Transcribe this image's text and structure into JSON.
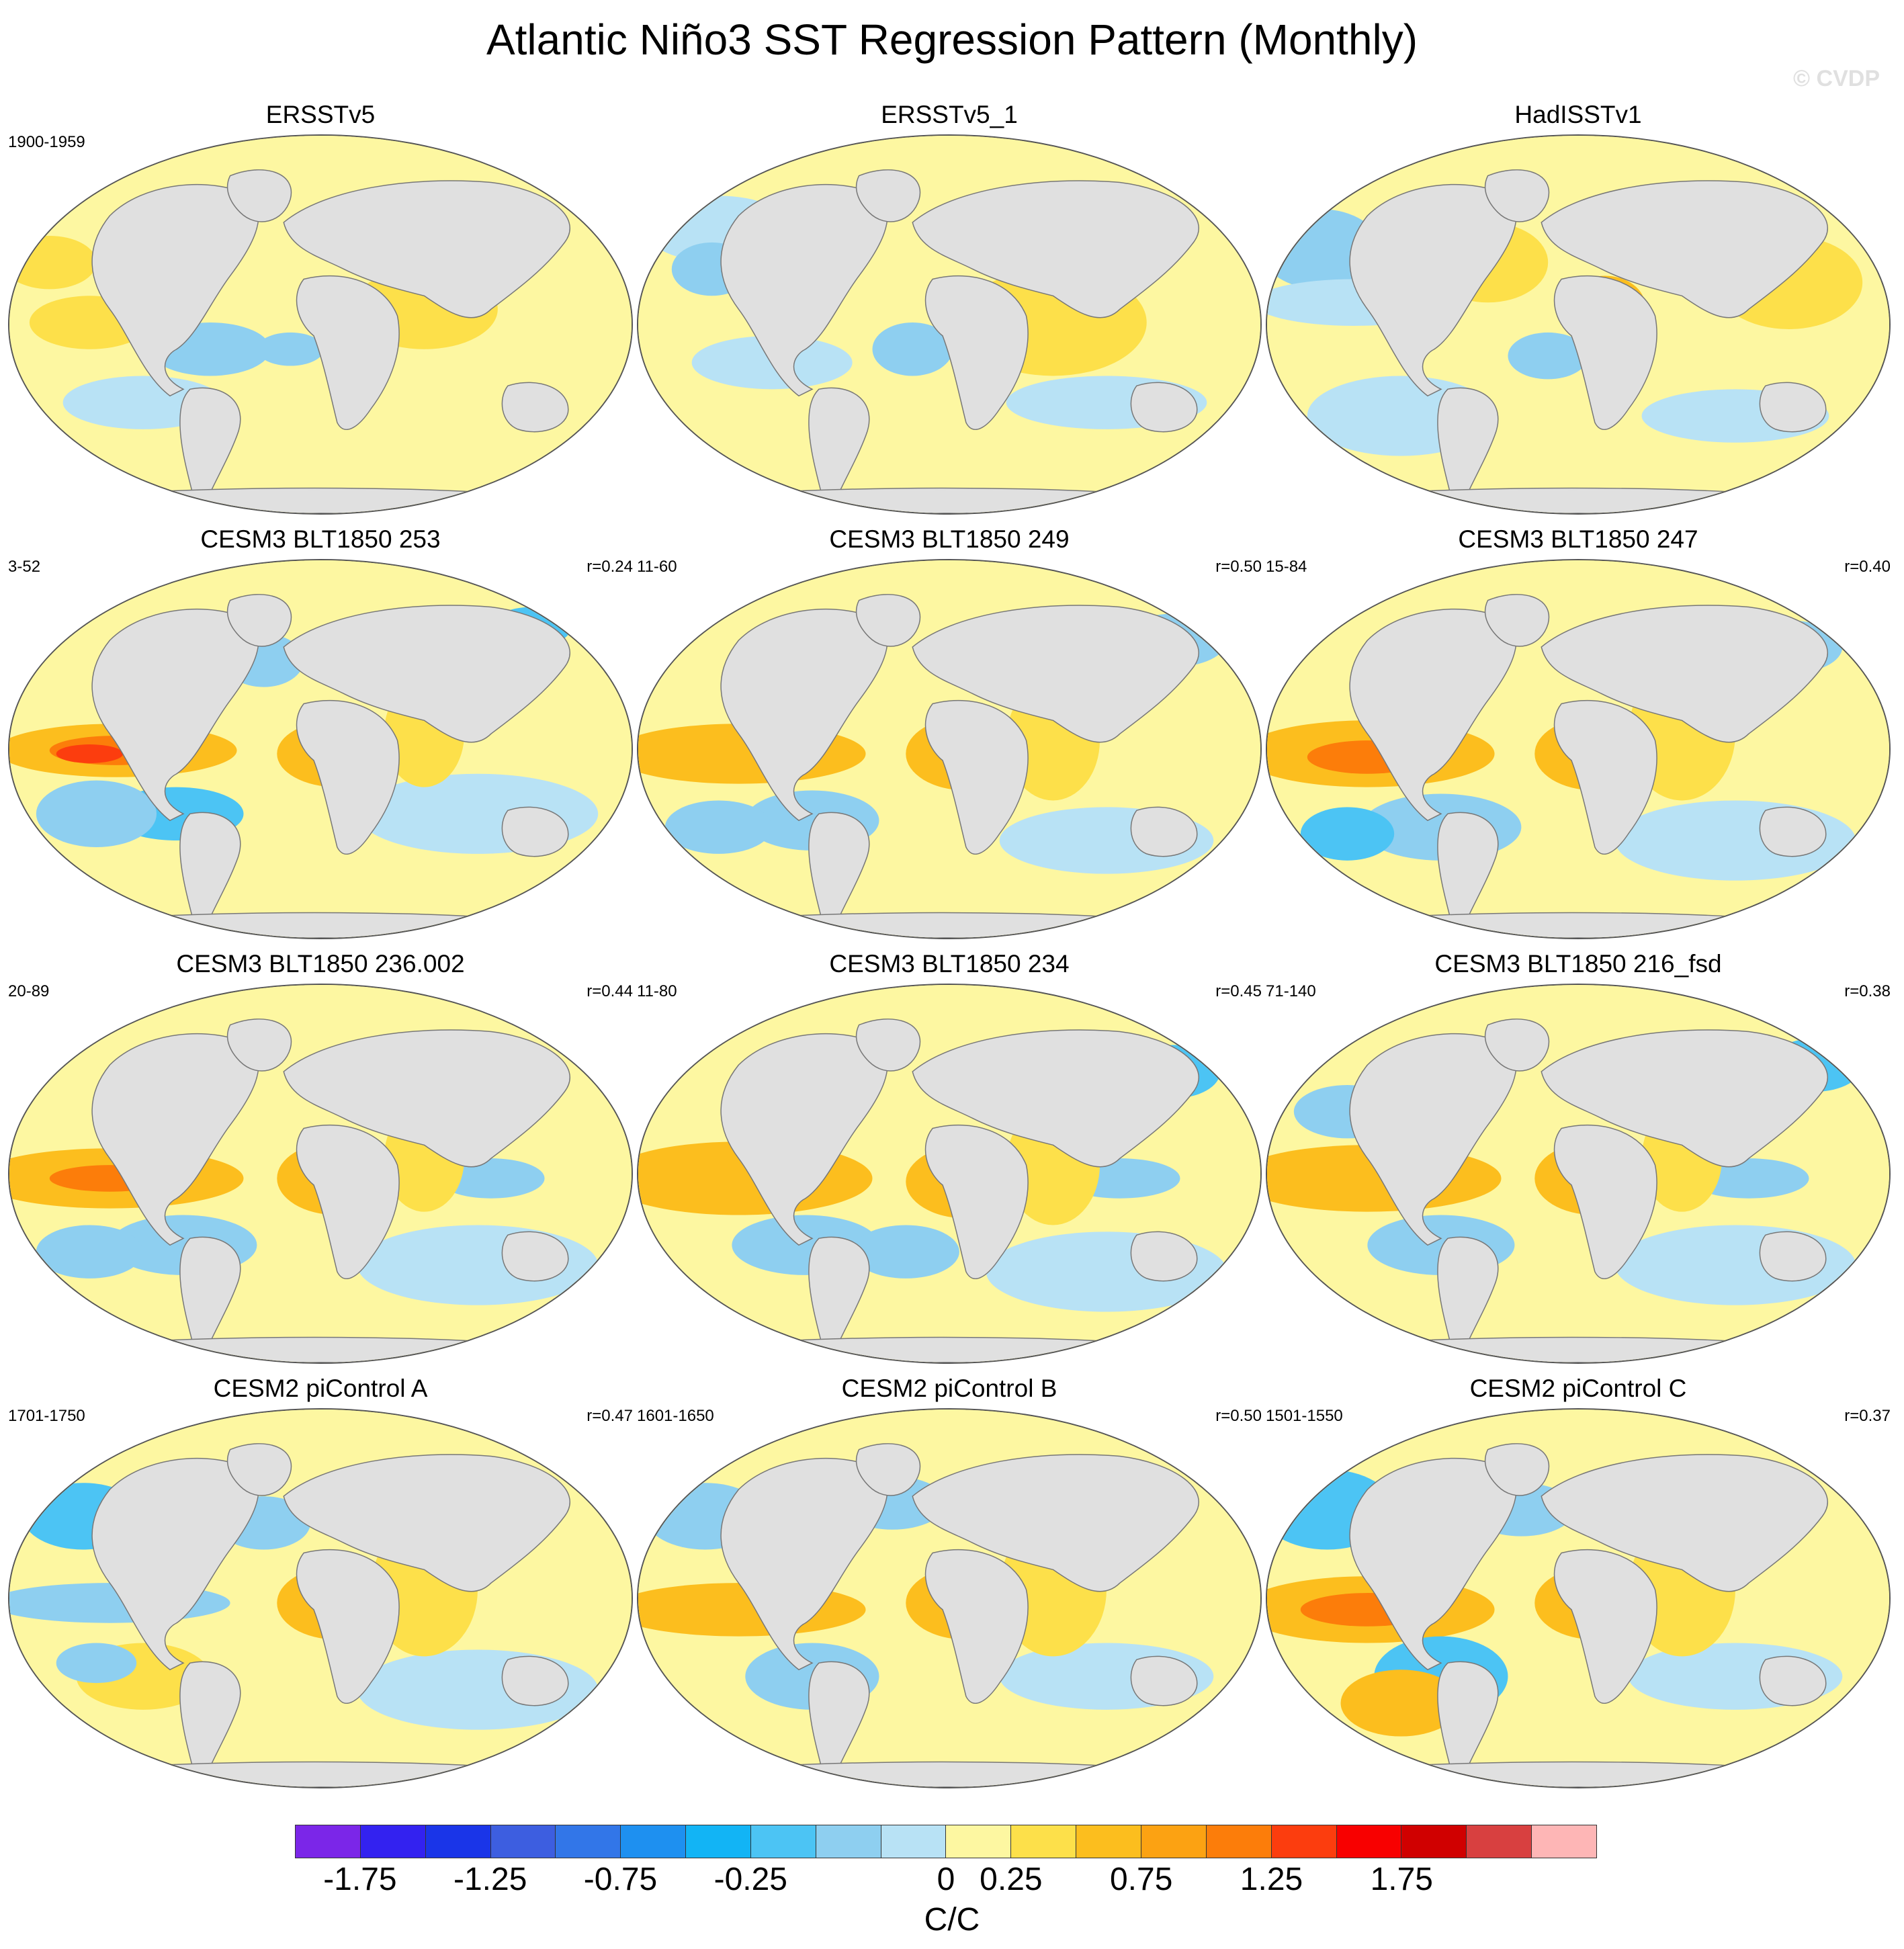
{
  "title": "Atlantic Niño3 SST Regression Pattern (Monthly)",
  "credit": "© CVDP",
  "panels": [
    {
      "title": "ERSSTv5",
      "years": "1900-1959",
      "r": ""
    },
    {
      "title": "ERSSTv5_1",
      "years": "",
      "r": ""
    },
    {
      "title": "HadISSTv1",
      "years": "",
      "r": ""
    },
    {
      "title": "CESM3 BLT1850 253",
      "years": "3-52",
      "r": "r=0.24"
    },
    {
      "title": "CESM3 BLT1850 249",
      "years": "11-60",
      "r": "r=0.50"
    },
    {
      "title": "CESM3 BLT1850 247",
      "years": "15-84",
      "r": "r=0.40"
    },
    {
      "title": "CESM3 BLT1850 236.002",
      "years": "20-89",
      "r": "r=0.44"
    },
    {
      "title": "CESM3 BLT1850 234",
      "years": "11-80",
      "r": "r=0.45"
    },
    {
      "title": "CESM3 BLT1850 216_fsd",
      "years": "71-140",
      "r": "r=0.38"
    },
    {
      "title": "CESM2 piControl A",
      "years": "1701-1750",
      "r": "r=0.47"
    },
    {
      "title": "CESM2 piControl B",
      "years": "1601-1650",
      "r": "r=0.50"
    },
    {
      "title": "CESM2 piControl C",
      "years": "1501-1550",
      "r": "r=0.37"
    }
  ],
  "colorbar": {
    "label": "C/C",
    "ticks": [
      "-1.75",
      "-1.25",
      "-0.75",
      "-0.25",
      "0",
      "0.25",
      "0.75",
      "1.25",
      "1.75"
    ],
    "colors": [
      "#7b26e8",
      "#3322f0",
      "#1a35e8",
      "#3d5ee0",
      "#3276e8",
      "#1e90f0",
      "#12b4f5",
      "#4cc4f4",
      "#8ecff0",
      "#b8e2f5",
      "#fdf7a1",
      "#fde04a",
      "#fcbe1e",
      "#fca212",
      "#fc7d0a",
      "#fc3d0e",
      "#f80000",
      "#d00000",
      "#d84040",
      "#feb6b6"
    ]
  },
  "map_colors": {
    "ocean_base": "#fdf7a1",
    "land": "#e0e0e0",
    "cool_light": "#b8e2f5",
    "cool": "#8ecff0",
    "cool_strong": "#4cc4f4",
    "warm": "#fde04a",
    "warm_mid": "#fcbe1e",
    "warm_strong": "#fca212",
    "warm_peak": "#fc7d0a",
    "hot": "#fc3d0e"
  }
}
